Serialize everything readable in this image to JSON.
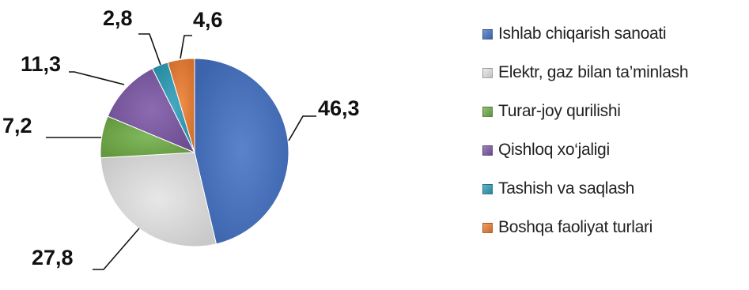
{
  "chart_data": {
    "type": "pie",
    "title": "",
    "start_angle_deg": 0,
    "slices": [
      {
        "label": "Ishlab chiqarish sanoati",
        "value": 46.3,
        "value_label": "46,3",
        "color": "#4472C4"
      },
      {
        "label": "Elektr, gaz bilan ta’minlash",
        "value": 27.8,
        "value_label": "27,8",
        "color": "#E4E4E4"
      },
      {
        "label": "Turar-joy qurilishi",
        "value": 7.2,
        "value_label": "7,2",
        "color": "#70AD47"
      },
      {
        "label": "Qishloq xo‘jaligi",
        "value": 11.3,
        "value_label": "11,3",
        "color": "#7C57A6"
      },
      {
        "label": "Tashish va saqlash",
        "value": 2.8,
        "value_label": "2,8",
        "color": "#2E9DB6"
      },
      {
        "label": "Boshqa faoliyat turlari",
        "value": 4.6,
        "value_label": "4,6",
        "color": "#ED7D31"
      }
    ],
    "legend_position": "right"
  }
}
